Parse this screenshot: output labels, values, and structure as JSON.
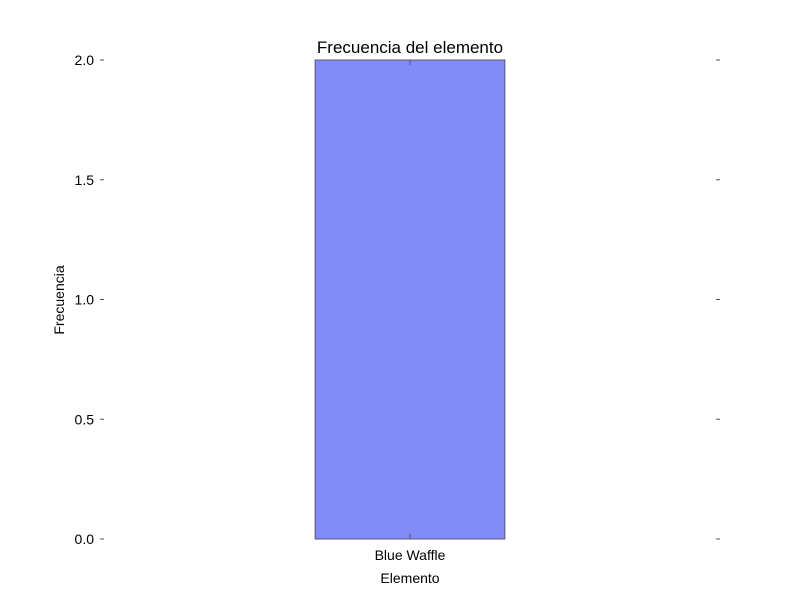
{
  "chart_data": {
    "type": "bar",
    "title": "Frecuencia del elemento",
    "xlabel": "Elemento",
    "ylabel": "Frecuencia",
    "categories": [
      "Blue Waffle"
    ],
    "values": [
      2.0
    ],
    "ylim": [
      0,
      2.0
    ],
    "yticks": [
      "0.0",
      "0.5",
      "1.0",
      "1.5",
      "2.0"
    ],
    "grid": false,
    "legend": "none",
    "bar_color": "#818cf8",
    "bar_edge_color": "#555577"
  }
}
